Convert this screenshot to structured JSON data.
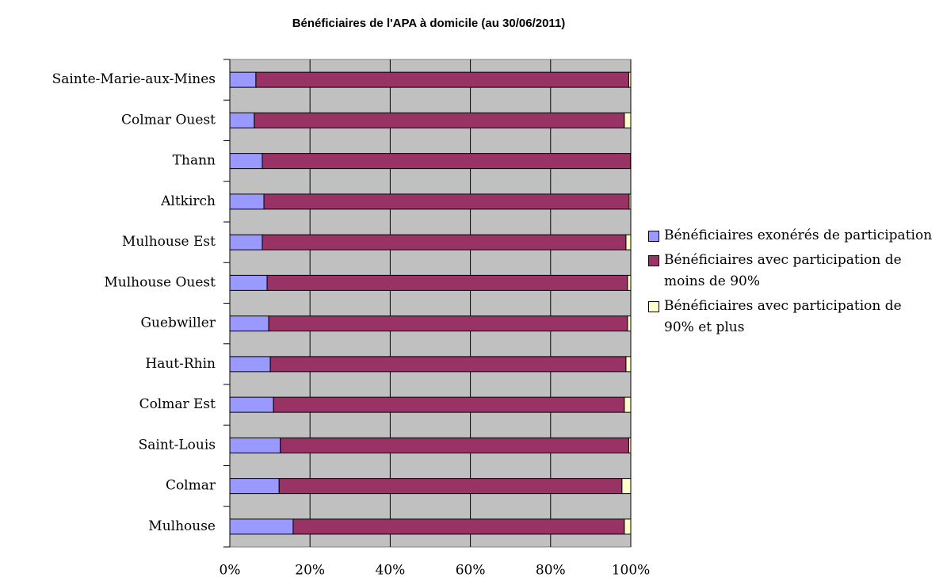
{
  "chart_data": {
    "type": "stacked_barh",
    "title": "Bénéficiaires de l'APA à domicile (au 30/06/2011)",
    "categories": [
      "Sainte-Marie-aux-Mines",
      "Colmar Ouest",
      "Thann",
      "Altkirch",
      "Mulhouse Est",
      "Mulhouse Ouest",
      "Guebwiller",
      "Haut-Rhin",
      "Colmar Est",
      "Saint-Louis",
      "Colmar",
      "Mulhouse"
    ],
    "series": [
      {
        "name": "Bénéficiaires exonérés de participation",
        "color": "#9999ff",
        "values": [
          6.5,
          6.1,
          8.1,
          8.5,
          8.1,
          9.3,
          9.7,
          10.1,
          10.9,
          12.6,
          12.3,
          15.8
        ]
      },
      {
        "name": "Bénéficiaires avec participation de moins de 90%",
        "color": "#993366",
        "values": [
          93.0,
          92.3,
          91.8,
          91.1,
          90.7,
          89.9,
          89.5,
          88.7,
          87.5,
          86.9,
          85.5,
          82.6
        ]
      },
      {
        "name": "Bénéficiaires avec participation de 90% et plus",
        "color": "#ffffcc",
        "values": [
          0.5,
          1.6,
          0.1,
          0.4,
          1.2,
          0.8,
          0.8,
          1.2,
          1.6,
          0.5,
          2.2,
          1.6
        ]
      }
    ],
    "xlim": [
      0,
      100
    ],
    "xticks": [
      {
        "value": 0,
        "label": "0%"
      },
      {
        "value": 20,
        "label": "20%"
      },
      {
        "value": 40,
        "label": "40%"
      },
      {
        "value": 60,
        "label": "60%"
      },
      {
        "value": 80,
        "label": "80%"
      },
      {
        "value": 100,
        "label": "100%"
      }
    ],
    "grid": true,
    "plot_background": "#c0c0c0",
    "legend": "right"
  }
}
